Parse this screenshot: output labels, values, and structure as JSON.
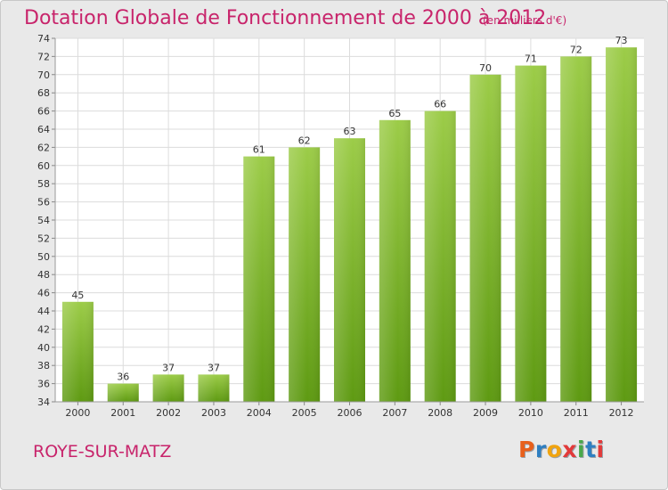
{
  "title": "Dotation Globale de Fonctionnement de 2000 à 2012",
  "subtitle": "(en milliers d'€)",
  "location": "ROYE-SUR-MATZ",
  "brand": {
    "text": "Proxiti",
    "colors": [
      "#e8601c",
      "#2f7fc1",
      "#f1a40f",
      "#e23a3a",
      "#4aa84a",
      "#2f7fc1",
      "#e23a3a"
    ]
  },
  "colors": {
    "accent": "#c8246b",
    "bar_top": "#9ccc48",
    "bar_bottom": "#5e9a12",
    "background": "#e9e9e9",
    "plot_background": "#ffffff",
    "grid": "#dcdcdc"
  },
  "chart_data": {
    "type": "bar",
    "categories": [
      "2000",
      "2001",
      "2002",
      "2003",
      "2004",
      "2005",
      "2006",
      "2007",
      "2008",
      "2009",
      "2010",
      "2011",
      "2012"
    ],
    "values": [
      45,
      36,
      37,
      37,
      61,
      62,
      63,
      65,
      66,
      70,
      71,
      72,
      73
    ],
    "data_labels": [
      "45",
      "36",
      "37",
      "37",
      "61",
      "62",
      "63",
      "65",
      "66",
      "70",
      "71",
      "72",
      "73"
    ],
    "title": "Dotation Globale de Fonctionnement de 2000 à 2012",
    "subtitle": "(en milliers d'€)",
    "xlabel": "",
    "ylabel": "",
    "ylim": [
      34,
      74
    ],
    "yticks": [
      34,
      36,
      38,
      40,
      42,
      44,
      46,
      48,
      50,
      52,
      54,
      56,
      58,
      60,
      62,
      64,
      66,
      68,
      70,
      72,
      74
    ],
    "grid": true,
    "legend": "none"
  }
}
